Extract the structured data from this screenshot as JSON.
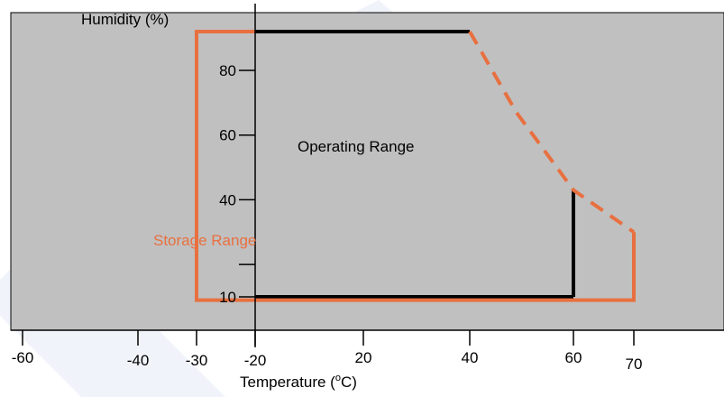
{
  "chart_data": {
    "type": "line",
    "ylabel": "Humidity (%)",
    "xlabel": "Temperature (",
    "xlabel_degree": "o",
    "xlabel_unit": "C)",
    "x_ticks": [
      {
        "value": -60,
        "label": "-60"
      },
      {
        "value": -40,
        "label": "-40"
      },
      {
        "value": -30,
        "label": "-30"
      },
      {
        "value": -20,
        "label": "-20"
      },
      {
        "value": 20,
        "label": "20"
      },
      {
        "value": 40,
        "label": "40"
      },
      {
        "value": 60,
        "label": "60"
      },
      {
        "value": 70,
        "label": "70"
      }
    ],
    "y_ticks": [
      {
        "value": 10,
        "label": "10"
      },
      {
        "value": 20,
        "label": ""
      },
      {
        "value": 40,
        "label": "40"
      },
      {
        "value": 60,
        "label": "60"
      },
      {
        "value": 80,
        "label": "80"
      }
    ],
    "annotations": {
      "operating": "Operating Range",
      "storage": "Storage Range"
    },
    "colors": {
      "plot_bg": "#c0c0c0",
      "operating": "#000000",
      "storage": "#e87040"
    },
    "operating_range": {
      "top_line": [
        [
          -20,
          92
        ],
        [
          40,
          92
        ]
      ],
      "bottom_line": [
        [
          -20,
          10
        ],
        [
          60,
          10
        ]
      ],
      "right_line": [
        [
          60,
          10
        ],
        [
          60,
          43
        ]
      ]
    },
    "storage_range": {
      "solid": [
        [
          70,
          30
        ],
        [
          70,
          9
        ],
        [
          -30,
          9
        ],
        [
          -30,
          92
        ],
        [
          -20,
          92
        ]
      ],
      "dashed": [
        [
          40,
          92
        ],
        [
          49,
          67
        ],
        [
          60,
          43
        ],
        [
          70,
          30
        ]
      ]
    }
  }
}
